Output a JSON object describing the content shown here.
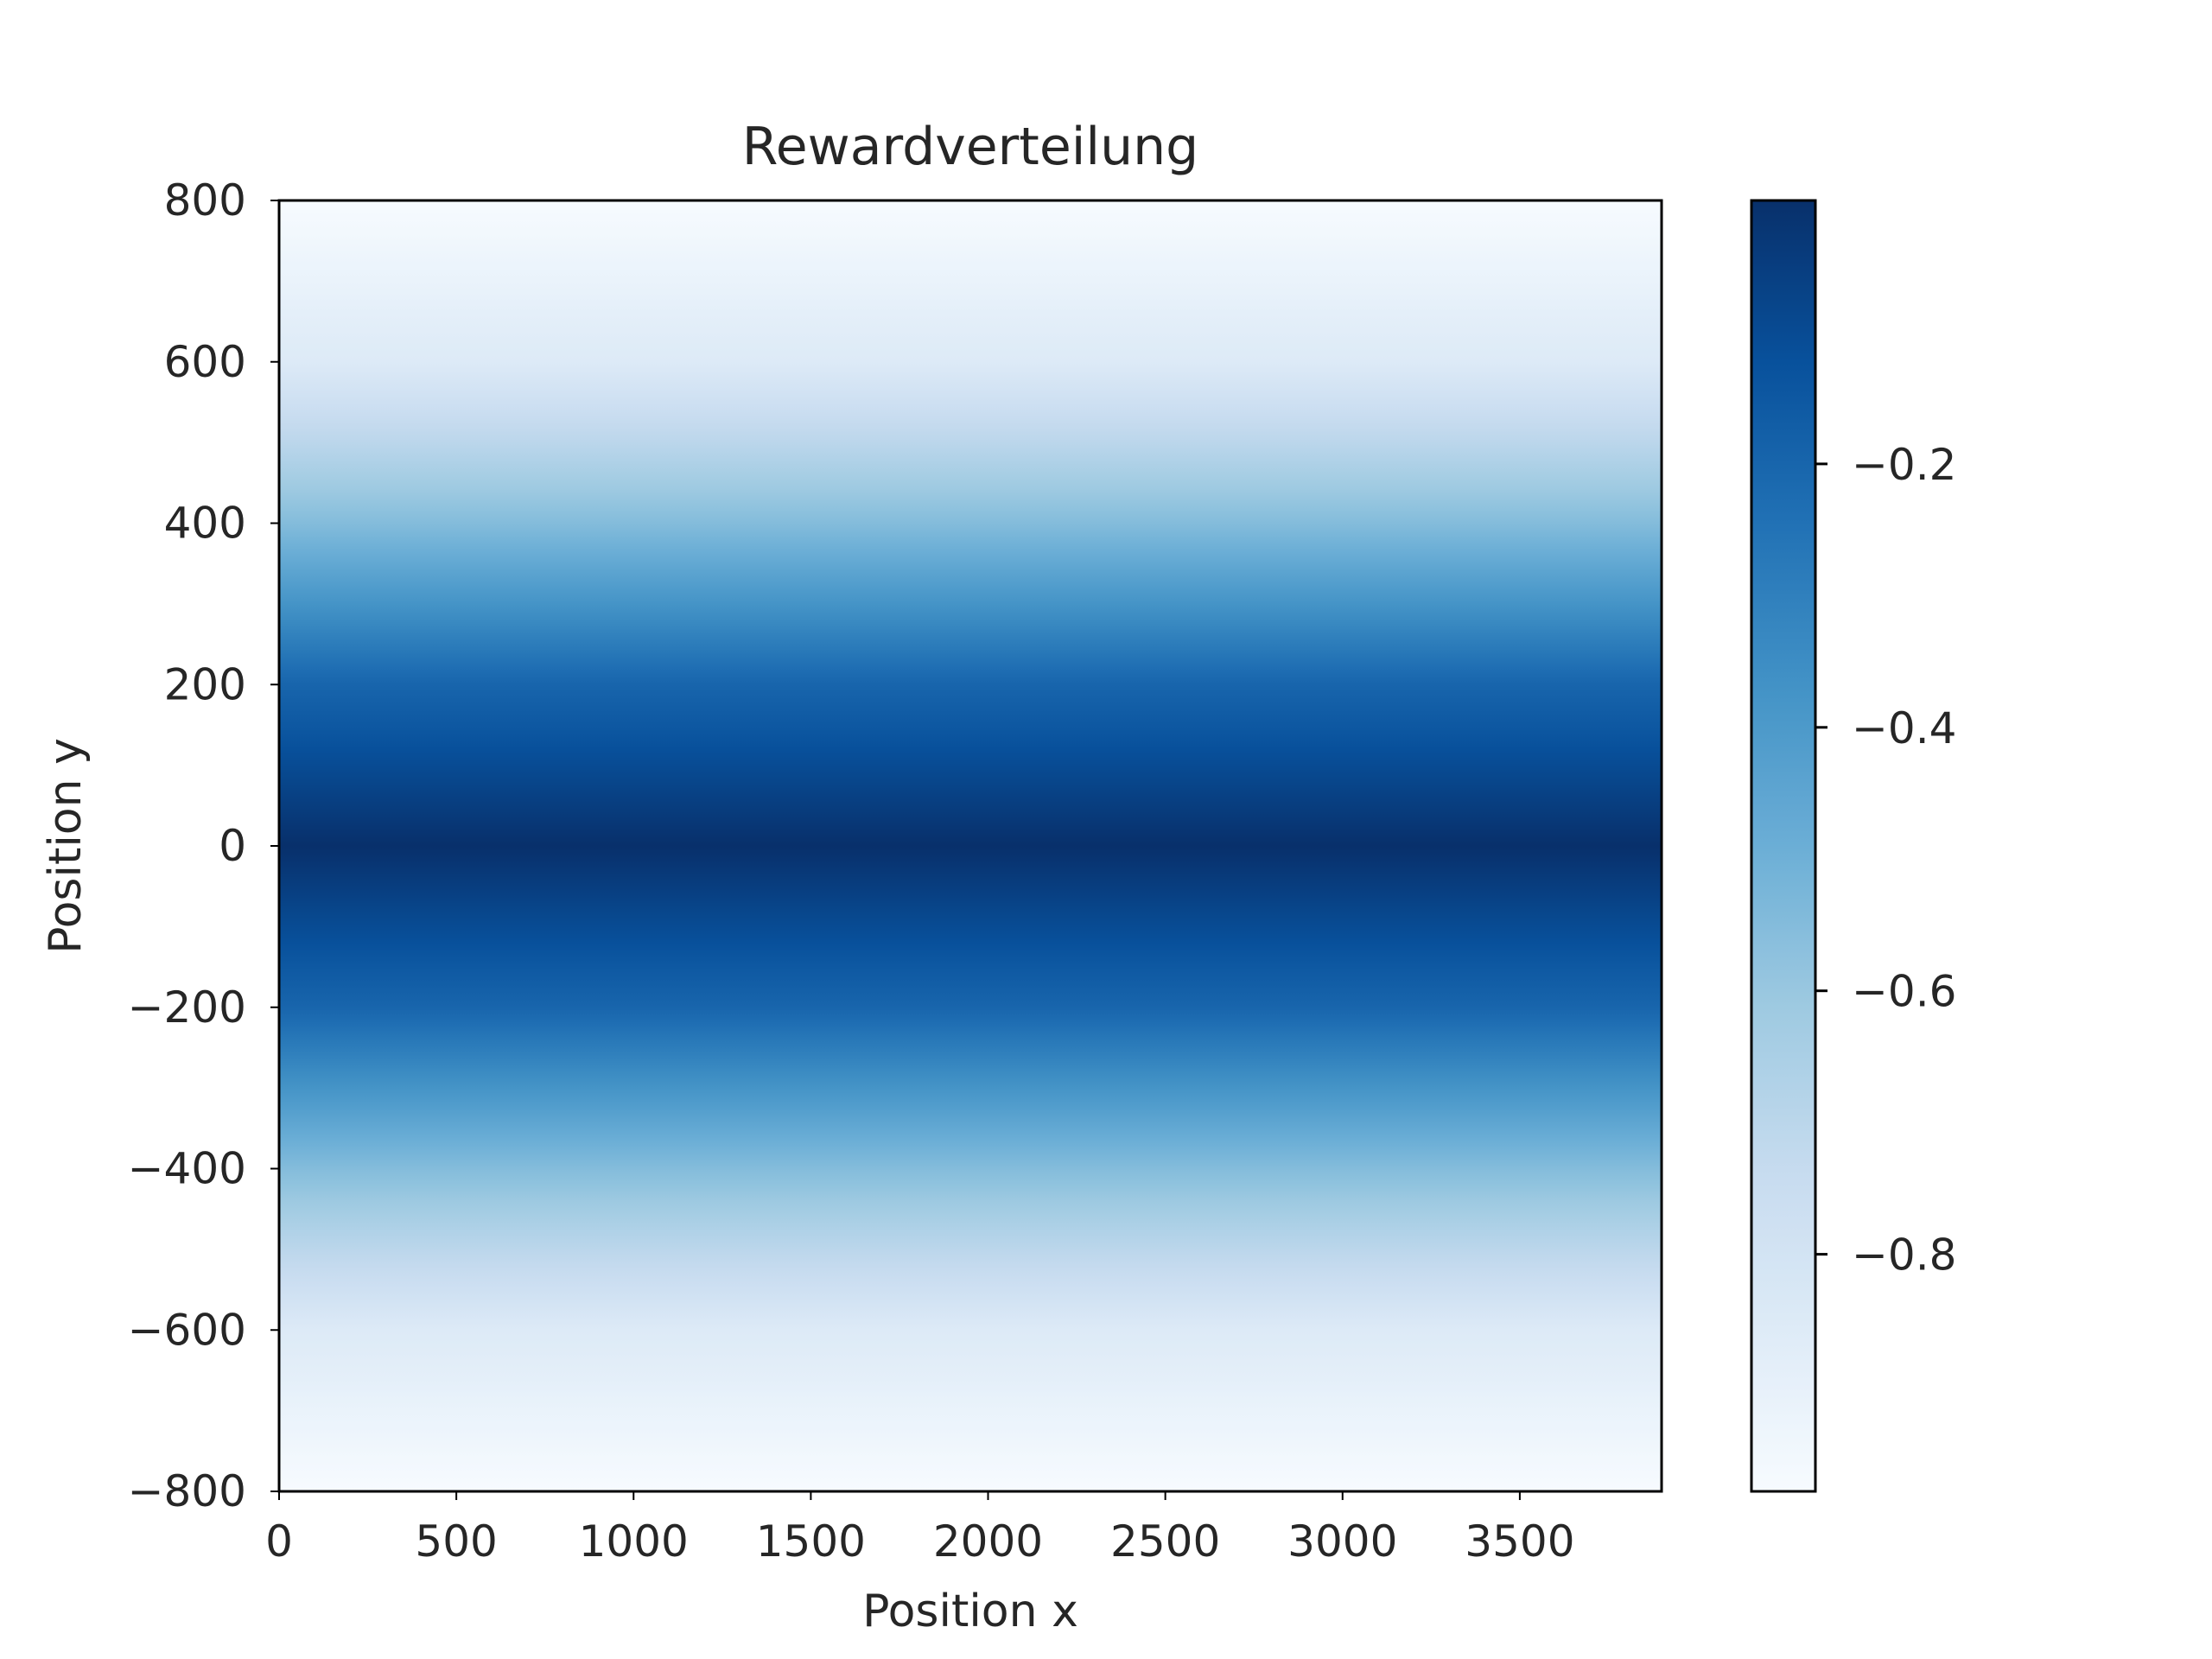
{
  "chart_data": {
    "type": "heatmap",
    "title": "Rewardverteilung",
    "xlabel": "Position x",
    "ylabel": "Position y",
    "xlim": [
      0,
      3900
    ],
    "ylim": [
      -800,
      800
    ],
    "x_ticks": [
      0,
      500,
      1000,
      1500,
      2000,
      2500,
      3000,
      3500
    ],
    "y_ticks": [
      800,
      600,
      400,
      200,
      0,
      -200,
      -400,
      -600,
      -800
    ],
    "x_tick_labels": [
      "0",
      "500",
      "1000",
      "1500",
      "2000",
      "2500",
      "3000",
      "3500"
    ],
    "y_tick_labels": [
      "800",
      "600",
      "400",
      "200",
      "0",
      "−200",
      "−400",
      "−600",
      "−800"
    ],
    "colormap": "Blues",
    "colorbar": {
      "vmin": -0.98,
      "vmax": 0.0,
      "ticks": [
        -0.2,
        -0.4,
        -0.6,
        -0.8
      ],
      "tick_labels": [
        "−0.2",
        "−0.4",
        "−0.6",
        "−0.8"
      ]
    },
    "reward_profile": {
      "description_of_axis": "reward constant along x, varies with y",
      "y": [
        -800,
        -600,
        -400,
        -200,
        0,
        200,
        400,
        600,
        800
      ],
      "value": [
        -0.98,
        -0.85,
        -0.55,
        -0.2,
        0.0,
        -0.2,
        -0.55,
        -0.85,
        -0.98
      ]
    },
    "grid": false
  },
  "colors": {
    "blues": [
      "#f7fbff",
      "#deebf7",
      "#c6dbef",
      "#9ecae1",
      "#6baed6",
      "#4292c6",
      "#2171b5",
      "#08519c",
      "#08306b"
    ]
  }
}
